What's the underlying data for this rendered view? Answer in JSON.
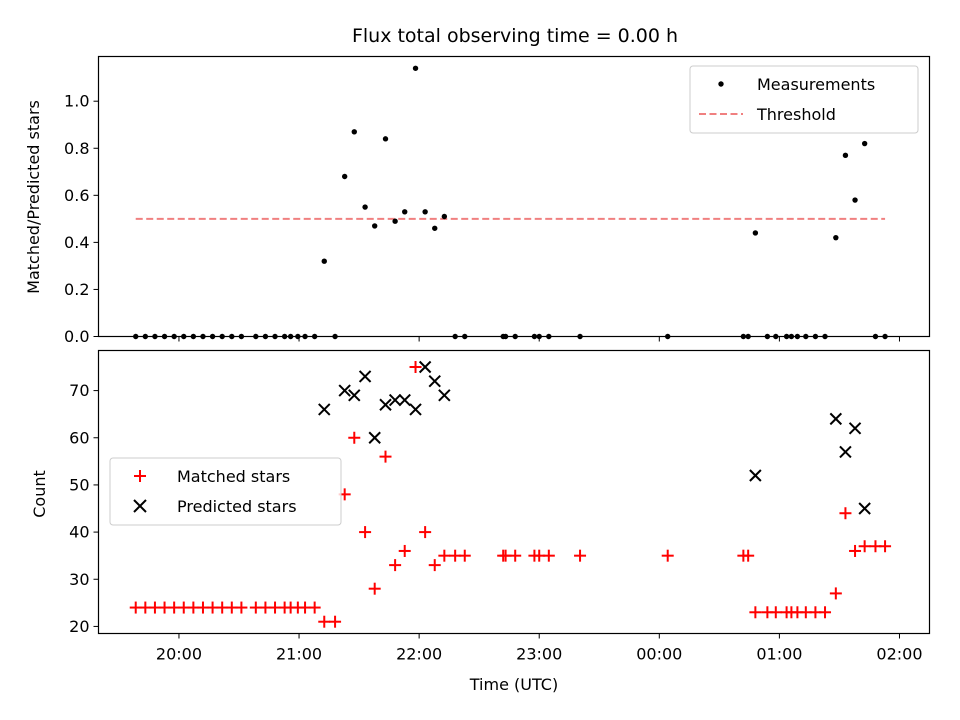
{
  "chart_data": [
    {
      "type": "scatter",
      "title": "Flux total observing time = 0.00 h",
      "xlabel": "",
      "ylabel": "Matched/Predicted stars",
      "xlim": [
        19.33,
        26.25
      ],
      "ylim": [
        0,
        1.19
      ],
      "yticks": [
        0.0,
        0.2,
        0.4,
        0.6,
        0.8,
        1.0
      ],
      "ytick_labels": [
        "0.0",
        "0.2",
        "0.4",
        "0.6",
        "0.8",
        "1.0"
      ],
      "xticks_labeled": false,
      "grid": false,
      "legend": "top-right",
      "series": [
        {
          "name": "Measurements",
          "kind": "scatter",
          "color": "#000000",
          "marker": "dot",
          "x": [
            19.64,
            19.72,
            19.8,
            19.88,
            19.96,
            20.04,
            20.12,
            20.2,
            20.28,
            20.36,
            20.44,
            20.52,
            20.64,
            20.72,
            20.8,
            20.88,
            20.93,
            20.99,
            21.05,
            21.13,
            21.21,
            21.3,
            21.38,
            21.46,
            21.55,
            21.63,
            21.72,
            21.8,
            21.88,
            21.97,
            22.05,
            22.13,
            22.21,
            22.3,
            22.38,
            22.7,
            22.72,
            22.8,
            22.96,
            23.0,
            23.08,
            23.34,
            24.07,
            24.7,
            24.74,
            24.8,
            24.9,
            24.97,
            25.06,
            25.1,
            25.15,
            25.22,
            25.3,
            25.38,
            25.47,
            25.55,
            25.63,
            25.71,
            25.8,
            25.88
          ],
          "y": [
            0,
            0,
            0,
            0,
            0,
            0,
            0,
            0,
            0,
            0,
            0,
            0,
            0,
            0,
            0,
            0,
            0,
            0,
            0,
            0,
            0.32,
            0,
            0.68,
            0.87,
            0.55,
            0.47,
            0.84,
            0.49,
            0.53,
            1.14,
            0.53,
            0.46,
            0.51,
            0,
            0,
            0,
            0,
            0,
            0,
            0,
            0,
            0,
            0,
            0,
            0,
            0.44,
            0,
            0,
            0,
            0,
            0,
            0,
            0,
            0,
            0.42,
            0.77,
            0.58,
            0.82,
            0,
            0
          ]
        },
        {
          "name": "Threshold",
          "kind": "line",
          "dash": "dashed",
          "color": "#f08080",
          "x": [
            19.64,
            25.88
          ],
          "y": [
            0.5,
            0.5
          ]
        }
      ]
    },
    {
      "type": "scatter",
      "title": "",
      "xlabel": "Time (UTC)",
      "ylabel": "Count",
      "xlim": [
        19.33,
        26.25
      ],
      "ylim": [
        18.5,
        78.5
      ],
      "yticks": [
        20,
        30,
        40,
        50,
        60,
        70
      ],
      "ytick_labels": [
        "20",
        "30",
        "40",
        "50",
        "60",
        "70"
      ],
      "xticks": [
        20,
        21,
        22,
        23,
        24,
        25,
        26
      ],
      "xtick_labels": [
        "20:00",
        "21:00",
        "22:00",
        "23:00",
        "00:00",
        "01:00",
        "02:00"
      ],
      "grid": false,
      "legend": "center-left",
      "series": [
        {
          "name": "Matched stars",
          "kind": "scatter",
          "color": "#ff0000",
          "marker": "plus",
          "x": [
            19.64,
            19.72,
            19.8,
            19.88,
            19.96,
            20.04,
            20.12,
            20.2,
            20.28,
            20.36,
            20.44,
            20.52,
            20.64,
            20.72,
            20.8,
            20.88,
            20.93,
            20.99,
            21.05,
            21.13,
            21.21,
            21.3,
            21.38,
            21.46,
            21.55,
            21.63,
            21.72,
            21.8,
            21.88,
            21.97,
            22.05,
            22.13,
            22.21,
            22.3,
            22.38,
            22.7,
            22.72,
            22.8,
            22.96,
            23.0,
            23.08,
            23.34,
            24.07,
            24.7,
            24.74,
            24.8,
            24.9,
            24.97,
            25.06,
            25.1,
            25.15,
            25.22,
            25.3,
            25.38,
            25.47,
            25.55,
            25.63,
            25.71,
            25.8,
            25.88
          ],
          "y": [
            24,
            24,
            24,
            24,
            24,
            24,
            24,
            24,
            24,
            24,
            24,
            24,
            24,
            24,
            24,
            24,
            24,
            24,
            24,
            24,
            21,
            21,
            48,
            60,
            40,
            28,
            56,
            33,
            36,
            75,
            40,
            33,
            35,
            35,
            35,
            35,
            35,
            35,
            35,
            35,
            35,
            35,
            35,
            35,
            35,
            23,
            23,
            23,
            23,
            23,
            23,
            23,
            23,
            23,
            27,
            44,
            36,
            37,
            37,
            37
          ]
        },
        {
          "name": "Predicted stars",
          "kind": "scatter",
          "color": "#000000",
          "marker": "x",
          "x": [
            21.21,
            21.38,
            21.46,
            21.55,
            21.63,
            21.72,
            21.8,
            21.88,
            21.97,
            22.05,
            22.13,
            22.21,
            24.8,
            25.47,
            25.55,
            25.63,
            25.71
          ],
          "y": [
            66,
            70,
            69,
            73,
            60,
            67,
            68,
            68,
            66,
            75,
            72,
            69,
            52,
            64,
            57,
            62,
            45
          ]
        }
      ]
    }
  ]
}
